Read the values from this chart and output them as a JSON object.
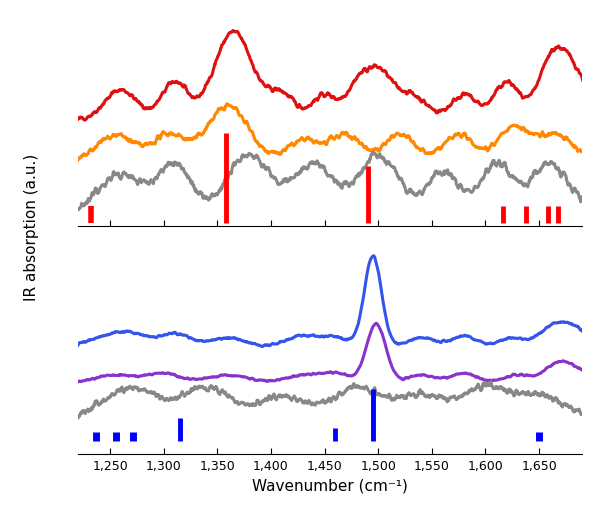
{
  "x_range": [
    1220,
    1690
  ],
  "x_ticks": [
    1250,
    1300,
    1350,
    1400,
    1450,
    1500,
    1550,
    1600,
    1650
  ],
  "x_label": "Wavenumber (cm⁻¹)",
  "y_label": "IR absorption (a.u.)",
  "top_colors": [
    "#dd1111",
    "#ff8800",
    "#888888"
  ],
  "bottom_colors": [
    "#3355ee",
    "#8833cc",
    "#888888"
  ],
  "top_red_markers": [
    1232,
    1358,
    1490,
    1616,
    1638,
    1658,
    1668
  ],
  "top_red_marker_heights": [
    0.18,
    0.55,
    0.35,
    0.12,
    0.12,
    0.12,
    0.12
  ],
  "bottom_blue_markers": [
    1237,
    1255,
    1271,
    1315,
    1460,
    1495,
    1650
  ],
  "bottom_blue_marker_heights": [
    0.1,
    0.1,
    0.18,
    0.18,
    0.1,
    0.4,
    0.1
  ],
  "background_color": "#ffffff"
}
